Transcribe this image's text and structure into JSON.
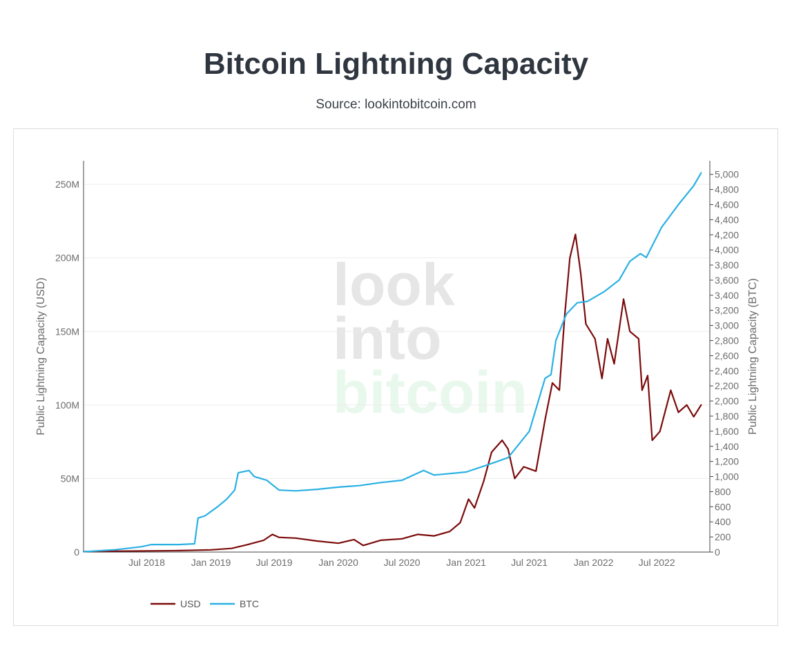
{
  "page": {
    "title": "Bitcoin Lightning Capacity",
    "subtitle": "Source: lookintobitcoin.com"
  },
  "watermark": {
    "line1": "look",
    "line2": "into",
    "line3": "bitcoin",
    "color_gray": "#e6e6e6",
    "color_green": "#e9f8ec"
  },
  "colors": {
    "usd": "#7b0a0a",
    "btc": "#29b0e3",
    "grid": "#ececec",
    "axis": "#444444"
  },
  "chart_data": {
    "type": "line",
    "x_axis": {
      "type": "date",
      "range": [
        "2018-01-01",
        "2022-11-30"
      ],
      "ticks": [
        {
          "date": "2018-07-01",
          "label": "Jul 2018"
        },
        {
          "date": "2019-01-01",
          "label": "Jan 2019"
        },
        {
          "date": "2019-07-01",
          "label": "Jul 2019"
        },
        {
          "date": "2020-01-01",
          "label": "Jan 2020"
        },
        {
          "date": "2020-07-01",
          "label": "Jul 2020"
        },
        {
          "date": "2021-01-01",
          "label": "Jan 2021"
        },
        {
          "date": "2021-07-01",
          "label": "Jul 2021"
        },
        {
          "date": "2022-01-01",
          "label": "Jan 2022"
        },
        {
          "date": "2022-07-01",
          "label": "Jul 2022"
        }
      ]
    },
    "y_left": {
      "label": "Public Lightning Capacity (USD)",
      "range": [
        0,
        266000000
      ],
      "ticks": [
        {
          "value": 0,
          "label": "0"
        },
        {
          "value": 50000000,
          "label": "50M"
        },
        {
          "value": 100000000,
          "label": "100M"
        },
        {
          "value": 150000000,
          "label": "150M"
        },
        {
          "value": 200000000,
          "label": "200M"
        },
        {
          "value": 250000000,
          "label": "250M"
        }
      ]
    },
    "y_right": {
      "label": "Public Lightning Capacity (BTC)",
      "range": [
        0,
        5180
      ],
      "ticks": [
        {
          "value": 0,
          "label": "0"
        },
        {
          "value": 200,
          "label": "200"
        },
        {
          "value": 400,
          "label": "400"
        },
        {
          "value": 600,
          "label": "600"
        },
        {
          "value": 800,
          "label": "800"
        },
        {
          "value": 1000,
          "label": "1,000"
        },
        {
          "value": 1200,
          "label": "1,200"
        },
        {
          "value": 1400,
          "label": "1,400"
        },
        {
          "value": 1600,
          "label": "1,600"
        },
        {
          "value": 1800,
          "label": "1,800"
        },
        {
          "value": 2000,
          "label": "2,000"
        },
        {
          "value": 2200,
          "label": "2,200"
        },
        {
          "value": 2400,
          "label": "2,400"
        },
        {
          "value": 2600,
          "label": "2,600"
        },
        {
          "value": 2800,
          "label": "2,800"
        },
        {
          "value": 3000,
          "label": "3,000"
        },
        {
          "value": 3200,
          "label": "3,200"
        },
        {
          "value": 3400,
          "label": "3,400"
        },
        {
          "value": 3600,
          "label": "3,600"
        },
        {
          "value": 3800,
          "label": "3,800"
        },
        {
          "value": 4000,
          "label": "4,000"
        },
        {
          "value": 4200,
          "label": "4,200"
        },
        {
          "value": 4400,
          "label": "4,400"
        },
        {
          "value": 4600,
          "label": "4,600"
        },
        {
          "value": 4800,
          "label": "4,800"
        },
        {
          "value": 5000,
          "label": "5,000"
        }
      ]
    },
    "grid": true,
    "legend_position": "bottom-left",
    "series": [
      {
        "name": "USD",
        "axis": "left",
        "color": "#7b0a0a",
        "points": [
          [
            "2018-01-01",
            300000
          ],
          [
            "2018-04-01",
            600000
          ],
          [
            "2018-07-01",
            800000
          ],
          [
            "2018-10-01",
            1000000
          ],
          [
            "2019-01-01",
            1500000
          ],
          [
            "2019-03-01",
            2500000
          ],
          [
            "2019-04-15",
            5000000
          ],
          [
            "2019-06-01",
            8000000
          ],
          [
            "2019-06-26",
            12000000
          ],
          [
            "2019-07-15",
            10000000
          ],
          [
            "2019-09-01",
            9500000
          ],
          [
            "2019-11-01",
            7500000
          ],
          [
            "2020-01-01",
            6000000
          ],
          [
            "2020-02-15",
            8500000
          ],
          [
            "2020-03-12",
            4500000
          ],
          [
            "2020-05-01",
            8000000
          ],
          [
            "2020-07-01",
            9000000
          ],
          [
            "2020-08-15",
            12000000
          ],
          [
            "2020-10-01",
            11000000
          ],
          [
            "2020-11-15",
            14000000
          ],
          [
            "2020-12-15",
            20000000
          ],
          [
            "2021-01-08",
            36000000
          ],
          [
            "2021-01-25",
            30000000
          ],
          [
            "2021-02-20",
            48000000
          ],
          [
            "2021-03-15",
            68000000
          ],
          [
            "2021-04-14",
            76000000
          ],
          [
            "2021-05-01",
            70000000
          ],
          [
            "2021-05-20",
            50000000
          ],
          [
            "2021-06-15",
            58000000
          ],
          [
            "2021-07-20",
            55000000
          ],
          [
            "2021-08-15",
            90000000
          ],
          [
            "2021-09-05",
            115000000
          ],
          [
            "2021-09-25",
            110000000
          ],
          [
            "2021-10-10",
            160000000
          ],
          [
            "2021-10-25",
            200000000
          ],
          [
            "2021-11-10",
            216000000
          ],
          [
            "2021-11-25",
            190000000
          ],
          [
            "2021-12-10",
            155000000
          ],
          [
            "2022-01-05",
            145000000
          ],
          [
            "2022-01-25",
            118000000
          ],
          [
            "2022-02-10",
            145000000
          ],
          [
            "2022-03-01",
            128000000
          ],
          [
            "2022-03-28",
            172000000
          ],
          [
            "2022-04-15",
            150000000
          ],
          [
            "2022-05-10",
            145000000
          ],
          [
            "2022-05-20",
            110000000
          ],
          [
            "2022-06-05",
            120000000
          ],
          [
            "2022-06-18",
            76000000
          ],
          [
            "2022-07-10",
            82000000
          ],
          [
            "2022-08-10",
            110000000
          ],
          [
            "2022-09-01",
            95000000
          ],
          [
            "2022-09-25",
            100000000
          ],
          [
            "2022-10-15",
            92000000
          ],
          [
            "2022-11-05",
            100000000
          ]
        ]
      },
      {
        "name": "BTC",
        "axis": "right",
        "color": "#29b0e3",
        "points": [
          [
            "2018-01-01",
            5
          ],
          [
            "2018-04-01",
            30
          ],
          [
            "2018-06-15",
            70
          ],
          [
            "2018-07-15",
            100
          ],
          [
            "2018-10-01",
            100
          ],
          [
            "2018-11-15",
            110
          ],
          [
            "2018-11-25",
            450
          ],
          [
            "2018-12-15",
            480
          ],
          [
            "2019-01-20",
            600
          ],
          [
            "2019-02-15",
            700
          ],
          [
            "2019-03-10",
            820
          ],
          [
            "2019-03-20",
            1050
          ],
          [
            "2019-04-20",
            1080
          ],
          [
            "2019-05-05",
            1000
          ],
          [
            "2019-06-10",
            950
          ],
          [
            "2019-07-15",
            820
          ],
          [
            "2019-09-01",
            810
          ],
          [
            "2019-11-01",
            830
          ],
          [
            "2020-01-01",
            860
          ],
          [
            "2020-03-01",
            880
          ],
          [
            "2020-05-01",
            920
          ],
          [
            "2020-07-01",
            950
          ],
          [
            "2020-09-01",
            1080
          ],
          [
            "2020-10-01",
            1020
          ],
          [
            "2021-01-01",
            1060
          ],
          [
            "2021-03-01",
            1150
          ],
          [
            "2021-05-01",
            1250
          ],
          [
            "2021-07-01",
            1600
          ],
          [
            "2021-08-15",
            2300
          ],
          [
            "2021-09-01",
            2350
          ],
          [
            "2021-09-15",
            2800
          ],
          [
            "2021-10-15",
            3150
          ],
          [
            "2021-11-15",
            3300
          ],
          [
            "2021-12-15",
            3320
          ],
          [
            "2022-02-01",
            3450
          ],
          [
            "2022-03-15",
            3600
          ],
          [
            "2022-04-15",
            3850
          ],
          [
            "2022-05-15",
            3950
          ],
          [
            "2022-06-01",
            3900
          ],
          [
            "2022-07-15",
            4300
          ],
          [
            "2022-09-01",
            4600
          ],
          [
            "2022-10-15",
            4850
          ],
          [
            "2022-11-05",
            5020
          ]
        ]
      }
    ]
  }
}
